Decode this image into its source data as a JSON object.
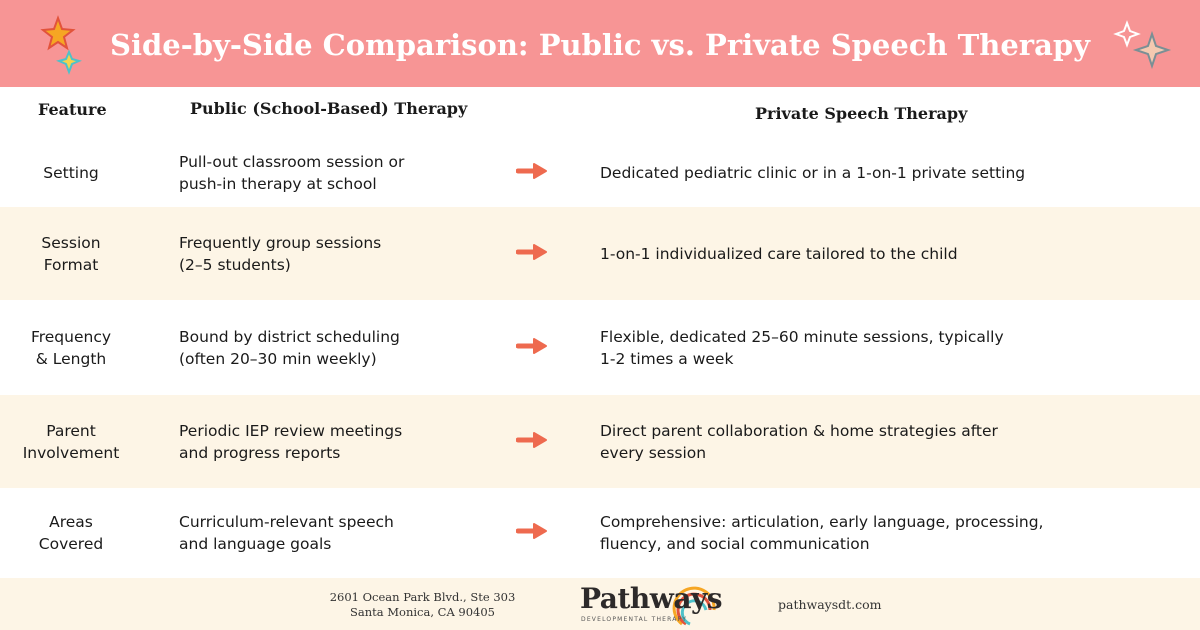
{
  "header": {
    "title": "Side-by-Side Comparison: Public vs. Private Speech Therapy"
  },
  "table": {
    "headers": [
      "Feature",
      "Public (School-Based) Therapy",
      "Private Speech Therapy"
    ],
    "rows": [
      {
        "feature": [
          "Setting"
        ],
        "public": [
          "Pull-out classroom session or",
          "push-in therapy at school"
        ],
        "private": [
          "Dedicated pediatric clinic or in a 1-on-1 private setting"
        ]
      },
      {
        "feature": [
          "Session",
          "Format"
        ],
        "public": [
          "Frequently group sessions",
          "(2–5 students)"
        ],
        "private": [
          "1-on-1 individualized care tailored to the child"
        ]
      },
      {
        "feature": [
          "Frequency",
          "& Length"
        ],
        "public": [
          "Bound by district scheduling",
          "(often 20–30 min weekly)"
        ],
        "private": [
          "Flexible, dedicated 25–60 minute sessions, typically",
          "1-2 times a week"
        ]
      },
      {
        "feature": [
          "Parent",
          "Involvement"
        ],
        "public": [
          "Periodic IEP review meetings",
          "and progress reports"
        ],
        "private": [
          "Direct parent collaboration & home strategies after",
          "every session"
        ]
      },
      {
        "feature": [
          "Areas",
          "Covered"
        ],
        "public": [
          "Curriculum-relevant speech",
          "and language goals"
        ],
        "private": [
          "Comprehensive: articulation, early language, processing,",
          "fluency, and social communication"
        ]
      }
    ]
  },
  "footer": {
    "address": [
      "2601 Ocean Park Blvd., Ste 303",
      "Santa Monica, CA 90405"
    ],
    "logo": "Pathways",
    "logo_sub": "DEVELOPMENTAL THERAPY",
    "website": "pathwaysdt.com"
  }
}
